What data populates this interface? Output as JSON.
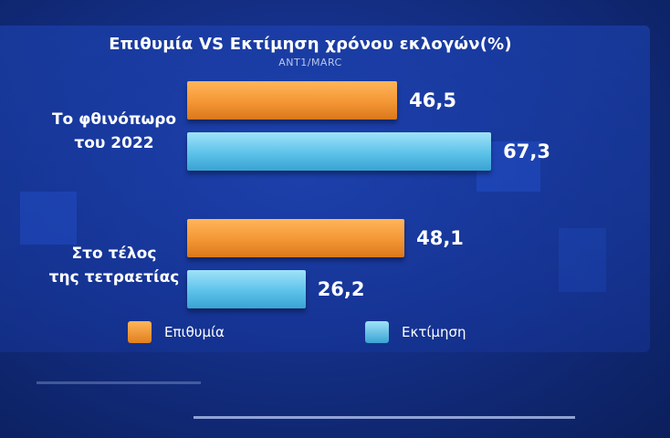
{
  "chart_data": {
    "type": "bar",
    "orientation": "horizontal",
    "title": "Επιθυμία VS Εκτίμηση χρόνου εκλογών(%)",
    "subtitle": "ANT1/MARC",
    "categories": [
      "Το φθινόπωρο\nτου 2022",
      "Στο τέλος\nτης τετραετίας"
    ],
    "series": [
      {
        "name": "Επιθυμία",
        "values": [
          46.5,
          48.1
        ],
        "labels": [
          "46,5",
          "48,1"
        ],
        "color": "#f49634"
      },
      {
        "name": "Εκτίμηση",
        "values": [
          67.3,
          26.2
        ],
        "labels": [
          "67,3",
          "26,2"
        ],
        "color": "#5cc2ea"
      }
    ],
    "xlim": [
      0,
      100
    ],
    "grid": false,
    "legend_position": "bottom"
  }
}
